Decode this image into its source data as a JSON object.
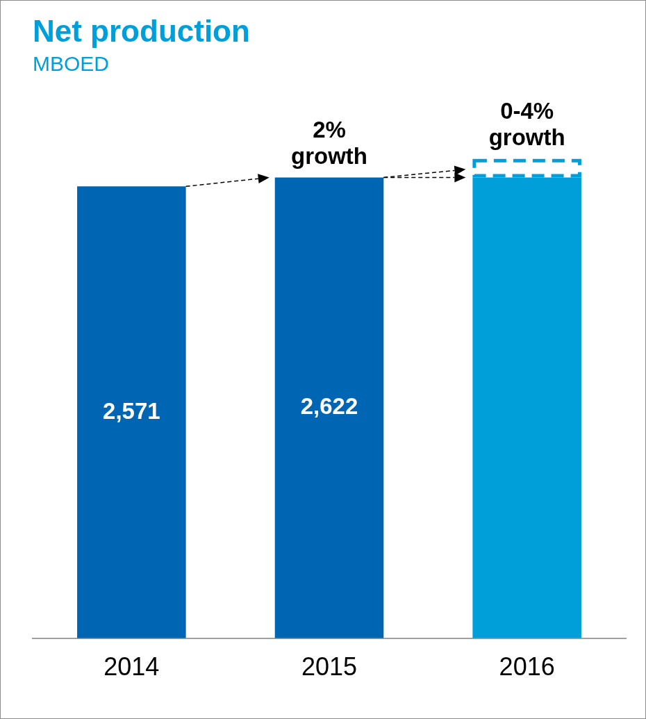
{
  "chart_data": {
    "type": "bar",
    "title": "Net production",
    "subtitle": "MBOED",
    "categories": [
      "2014",
      "2015",
      "2016"
    ],
    "stacked": true,
    "tick_labels": "x",
    "grid": false,
    "legend": false,
    "series": [
      {
        "colors": [
          "#0066b3",
          "#0066b3",
          "#009fda"
        ],
        "values": [
          2571,
          2622,
          2622
        ],
        "value_labels": [
          "2,571",
          "2,622",
          null
        ]
      },
      {
        "color": "#009fda",
        "line_style": "dashed",
        "values": [
          null,
          null,
          105
        ]
      }
    ],
    "annotations": [
      "2% growth",
      "0-4% growth"
    ]
  }
}
